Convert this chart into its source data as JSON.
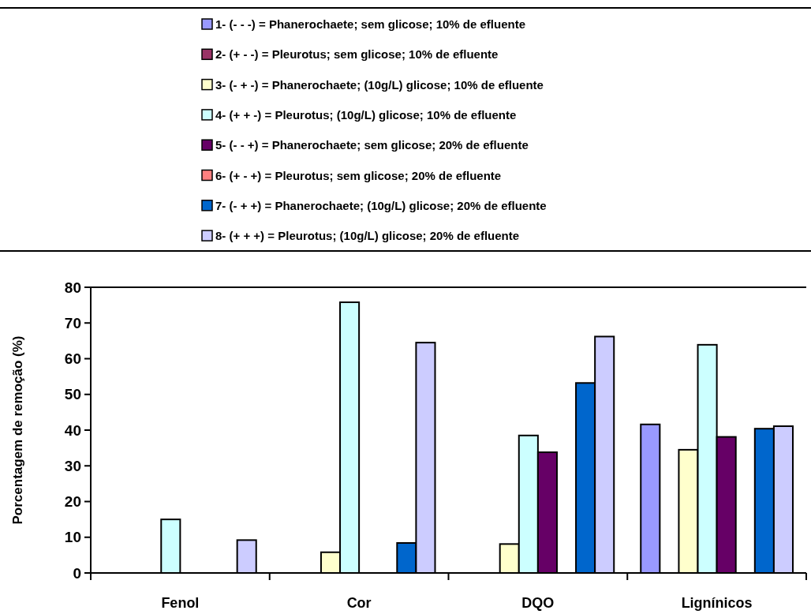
{
  "chart_data": {
    "type": "bar",
    "ylabel": "Porcentagem de remoção (%)",
    "categories": [
      "Fenol",
      "Cor",
      "DQO",
      "Lignínicos"
    ],
    "series": [
      {
        "name": "1- (- - -) = Phanerochaete; sem glicose; 10% de efluente",
        "color": "#9999ff",
        "values": [
          0,
          0,
          0,
          41.6
        ]
      },
      {
        "name": "2- (+ - -) = Pleurotus; sem glicose; 10% de efluente",
        "color": "#993366",
        "values": [
          0,
          0,
          0,
          0
        ]
      },
      {
        "name": "3- (- + -) = Phanerochaete; (10g/L) glicose; 10% de efluente",
        "color": "#ffffcc",
        "values": [
          0,
          5.8,
          8.1,
          34.5
        ]
      },
      {
        "name": "4- (+ + -) = Pleurotus; (10g/L) glicose; 10% de efluente",
        "color": "#ccffff",
        "values": [
          15,
          75.8,
          38.5,
          63.9
        ]
      },
      {
        "name": "5- (- - +) = Phanerochaete; sem glicose; 20% de efluente",
        "color": "#660066",
        "values": [
          0,
          0,
          33.8,
          38.1
        ]
      },
      {
        "name": "6- (+ - +) = Pleurotus; sem glicose; 20% de efluente",
        "color": "#ff8080",
        "values": [
          0,
          0,
          0,
          0
        ]
      },
      {
        "name": "7- (- + +) = Phanerochaete; (10g/L) glicose; 20% de efluente",
        "color": "#0066cc",
        "values": [
          0,
          8.4,
          53.2,
          40.4
        ]
      },
      {
        "name": "8- (+ + +) = Pleurotus; (10g/L) glicose; 20% de efluente",
        "color": "#ccccff",
        "values": [
          9.2,
          64.5,
          66.2,
          41.1
        ]
      }
    ],
    "ylim": [
      0,
      80
    ],
    "yticks": [
      0,
      10,
      20,
      30,
      40,
      50,
      60,
      70,
      80
    ],
    "grid": false,
    "legend": "top"
  }
}
